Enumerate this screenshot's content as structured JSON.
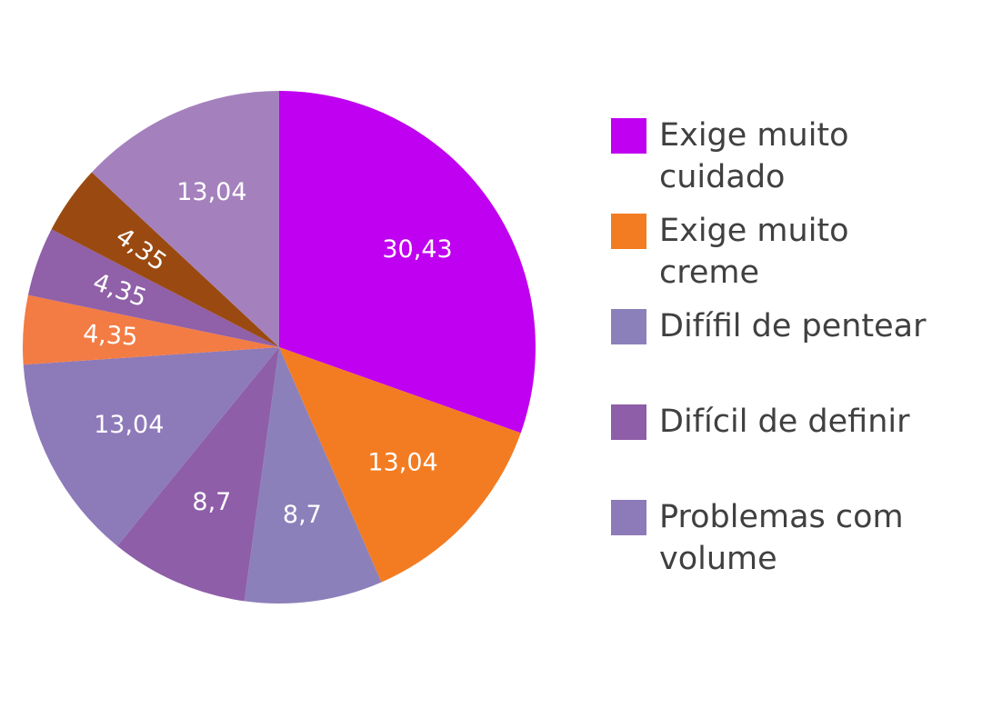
{
  "chart_data": {
    "type": "pie",
    "title": "",
    "slices": [
      {
        "label": "30,43",
        "value": 30.43,
        "color": "#C000F0"
      },
      {
        "label": "13,04",
        "value": 13.04,
        "color": "#F37C22"
      },
      {
        "label": "8,7",
        "value": 8.7,
        "color": "#8C80BA"
      },
      {
        "label": "8,7",
        "value": 8.7,
        "color": "#8E5EA8"
      },
      {
        "label": "13,04",
        "value": 13.04,
        "color": "#8D7AB9"
      },
      {
        "label": "4,35",
        "value": 4.35,
        "color": "#F37C44"
      },
      {
        "label": "4,35",
        "value": 4.35,
        "color": "#9060A8"
      },
      {
        "label": "4,35",
        "value": 4.35,
        "color": "#9A4A10"
      },
      {
        "label": "13,04",
        "value": 13.04,
        "color": "#A481BD"
      }
    ],
    "legend": [
      {
        "label": "Exige muito cuidado",
        "color": "#C000F0"
      },
      {
        "label": "Exige muito creme",
        "color": "#F37C22"
      },
      {
        "label": "Difífil de pentear",
        "color": "#8C80BA"
      },
      {
        "label": "Difícil de definir",
        "color": "#8E5EA8"
      },
      {
        "label": "Problemas com volume",
        "color": "#8D7AB9"
      }
    ],
    "legend_position": "right"
  }
}
